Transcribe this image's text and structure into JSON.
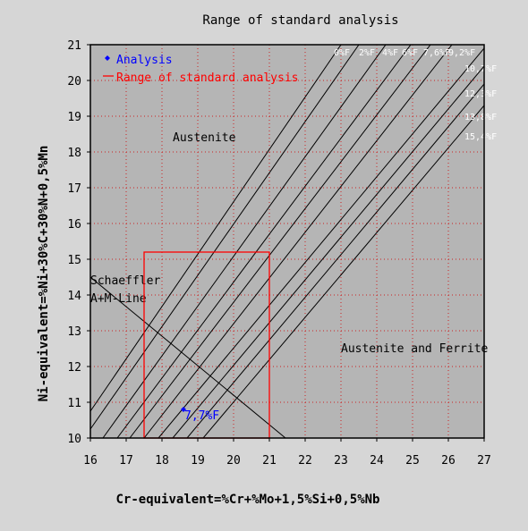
{
  "chart_data": {
    "type": "line",
    "title": "Range of standard analysis",
    "xlabel": "Cr-equivalent=%Cr+%Mo+1,5%Si+0,5%Nb",
    "ylabel": "Ni-equivalent=%Ni+30%C+30%N+0,5%Mn",
    "xlim": [
      16,
      27
    ],
    "ylim": [
      10,
      21
    ],
    "x_ticks": [
      16,
      17,
      18,
      19,
      20,
      21,
      22,
      23,
      24,
      25,
      26,
      27
    ],
    "y_ticks": [
      10,
      11,
      12,
      13,
      14,
      15,
      16,
      17,
      18,
      19,
      20,
      21
    ],
    "grid": true,
    "legend_position": "top-left",
    "legend": [
      {
        "label": "Analysis",
        "color": "#0000ff",
        "marker": "diamond"
      },
      {
        "label": "Range of standard analysis",
        "color": "#ff0000",
        "marker": "line"
      }
    ],
    "regions": [
      {
        "label": "Austenite",
        "x": 18.3,
        "y": 18.3
      },
      {
        "label": "Austenite and Ferrite",
        "x": 23.0,
        "y": 12.4
      }
    ],
    "schaeffler_line": {
      "label_lines": [
        "Schaeffler",
        "A+M-Line"
      ],
      "label_x": 16.0,
      "label_y": 14.3,
      "points": [
        [
          16.0,
          14.5
        ],
        [
          21.45,
          10.0
        ]
      ],
      "color": "#000000"
    },
    "ferrite_lines": [
      {
        "label": "0%F",
        "points": [
          [
            16.0,
            10.75
          ],
          [
            23.0,
            21.0
          ]
        ],
        "label_x": 22.8,
        "label_y": 20.7
      },
      {
        "label": "2%F",
        "points": [
          [
            16.0,
            10.25
          ],
          [
            23.5,
            21.0
          ]
        ],
        "label_x": 23.5,
        "label_y": 20.7
      },
      {
        "label": "4%F",
        "points": [
          [
            16.35,
            10.0
          ],
          [
            24.25,
            21.0
          ]
        ],
        "label_x": 24.15,
        "label_y": 20.7
      },
      {
        "label": "6%F",
        "points": [
          [
            16.75,
            10.0
          ],
          [
            24.95,
            21.0
          ]
        ],
        "label_x": 24.7,
        "label_y": 20.7
      },
      {
        "label": "7,6%F",
        "points": [
          [
            17.1,
            10.0
          ],
          [
            25.5,
            21.0
          ]
        ],
        "label_x": 25.3,
        "label_y": 20.7
      },
      {
        "label": "9,2%F",
        "points": [
          [
            17.5,
            10.0
          ],
          [
            26.1,
            21.0
          ]
        ],
        "label_x": 26.0,
        "label_y": 20.7
      },
      {
        "label": "10,7%F",
        "points": [
          [
            17.9,
            10.0
          ],
          [
            27.0,
            20.9
          ]
        ],
        "label_x": 26.45,
        "label_y": 20.25
      },
      {
        "label": "12,3%F",
        "points": [
          [
            18.3,
            10.0
          ],
          [
            27.0,
            20.4
          ]
        ],
        "label_x": 26.45,
        "label_y": 19.55
      },
      {
        "label": "13,8%F",
        "points": [
          [
            18.7,
            10.0
          ],
          [
            27.0,
            19.9
          ]
        ],
        "label_x": 26.45,
        "label_y": 18.9
      },
      {
        "label": "15,4%F",
        "points": [
          [
            19.15,
            10.0
          ],
          [
            27.0,
            19.3
          ]
        ],
        "label_x": 26.45,
        "label_y": 18.35
      }
    ],
    "range_rect": {
      "x": [
        17.5,
        21.0
      ],
      "y": [
        10.0,
        15.2
      ],
      "color": "#ff0000"
    },
    "analysis_point": {
      "x": 18.6,
      "y": 10.8,
      "label": "7,7%F",
      "color": "#0000ff"
    }
  }
}
